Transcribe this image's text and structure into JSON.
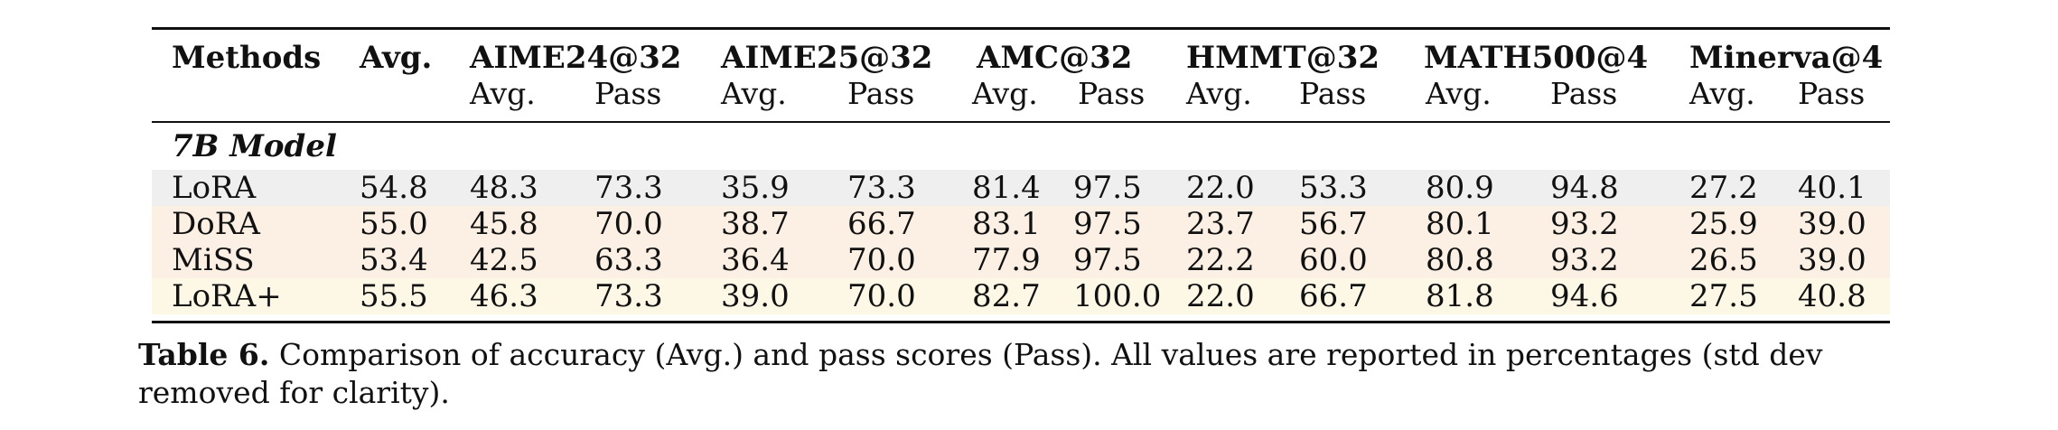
{
  "table": {
    "headers": {
      "methods": "Methods",
      "avg": "Avg.",
      "groups": [
        "AIME24@32",
        "AIME25@32",
        "AMC@32",
        "HMMT@32",
        "MATH500@4",
        "Minerva@4"
      ],
      "sub_avg": "Avg.",
      "sub_pass": "Pass"
    },
    "section_label": "7B Model",
    "rows": [
      {
        "method": "LoRA",
        "bg": "#efefef",
        "values": [
          "54.8",
          "48.3",
          "73.3",
          "35.9",
          "73.3",
          "81.4",
          "97.5",
          "22.0",
          "53.3",
          "80.9",
          "94.8",
          "27.2",
          "40.1"
        ]
      },
      {
        "method": "DoRA",
        "bg": "#fcf0e4",
        "values": [
          "55.0",
          "45.8",
          "70.0",
          "38.7",
          "66.7",
          "83.1",
          "97.5",
          "23.7",
          "56.7",
          "80.1",
          "93.2",
          "25.9",
          "39.0"
        ]
      },
      {
        "method": "MiSS",
        "bg": "#fcf0e4",
        "values": [
          "53.4",
          "42.5",
          "63.3",
          "36.4",
          "70.0",
          "77.9",
          "97.5",
          "22.2",
          "60.0",
          "80.8",
          "93.2",
          "26.5",
          "39.0"
        ]
      },
      {
        "method": "LoRA+",
        "bg": "#fdf8e6",
        "values": [
          "55.5",
          "46.3",
          "73.3",
          "39.0",
          "70.0",
          "82.7",
          "100.0",
          "22.0",
          "66.7",
          "81.8",
          "94.6",
          "27.5",
          "40.8"
        ]
      }
    ]
  },
  "caption": {
    "label": "Table 6.",
    "text": "Comparison of accuracy (Avg.) and pass scores (Pass). All values are reported in percentages (std dev removed for clarity)."
  }
}
